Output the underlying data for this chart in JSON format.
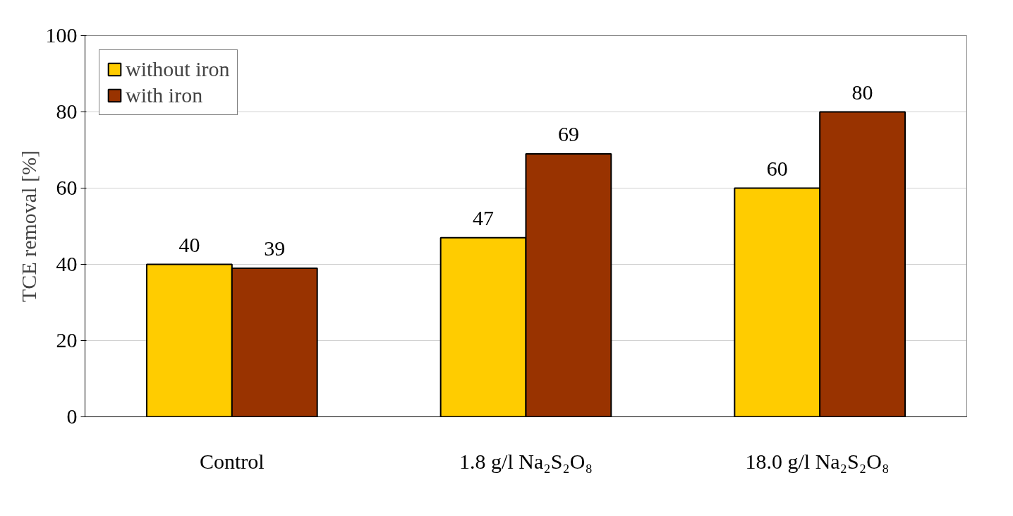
{
  "chart_data": {
    "type": "bar",
    "ylabel": "TCE removal [%]",
    "categories": [
      "Control",
      "1.8 g/l Na₂S₂O₈",
      "18.0 g/l  Na₂S₂O₈"
    ],
    "series": [
      {
        "name": "without iron",
        "color": "#ffcc00",
        "values": [
          40,
          47,
          60
        ]
      },
      {
        "name": "with iron",
        "color": "#993300",
        "values": [
          39,
          69,
          80
        ]
      }
    ],
    "ylim": [
      0,
      100
    ],
    "yticks": [
      0,
      20,
      40,
      60,
      80,
      100
    ],
    "grid": "y",
    "legend": "top left",
    "data_labels": true
  }
}
